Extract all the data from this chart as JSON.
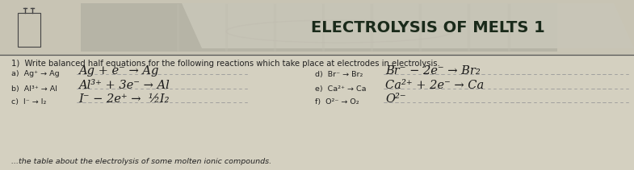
{
  "bg_color": "#d4d0c0",
  "paper_bg": "#dedad0",
  "header_banner_color": "#c8c4b4",
  "header_photo_color": "#b0aea0",
  "title": "ELECTROLYSIS OF MELTS 1",
  "title_fontsize": 14,
  "title_color": "#1a2a1a",
  "instruction": "1)  Write balanced half equations for the following reactions which take place at electrodes in electrolysis.",
  "instruction_fontsize": 7.2,
  "label_a": "a)  Ag⁺ → Ag",
  "label_b": "b)  Al³⁺ → Al",
  "label_c": "c)  I⁻ → I₂",
  "label_d": "d)  Br⁻ → Br₂",
  "label_e": "e)  Ca²⁺ → Ca",
  "label_f": "f)  O²⁻ → O₂",
  "ans_a": "Ag + e⁻ → Ag",
  "ans_b": "Al³⁺ + 3e⁻ → Al",
  "ans_c": "I⁻ − 2e⁺ →  ½I₂",
  "ans_d": "Br⁻ − 2e⁻ → Br₂",
  "ans_e": "Ca²⁺ + 2e⁻ → Ca",
  "ans_f": "O²⁻",
  "footer": "...the table about the electrolysis of some molten ionic compounds.",
  "handwriting_color": "#1a1a1a",
  "dotted_color": "#999999",
  "label_color": "#222222",
  "line_color": "#555555"
}
